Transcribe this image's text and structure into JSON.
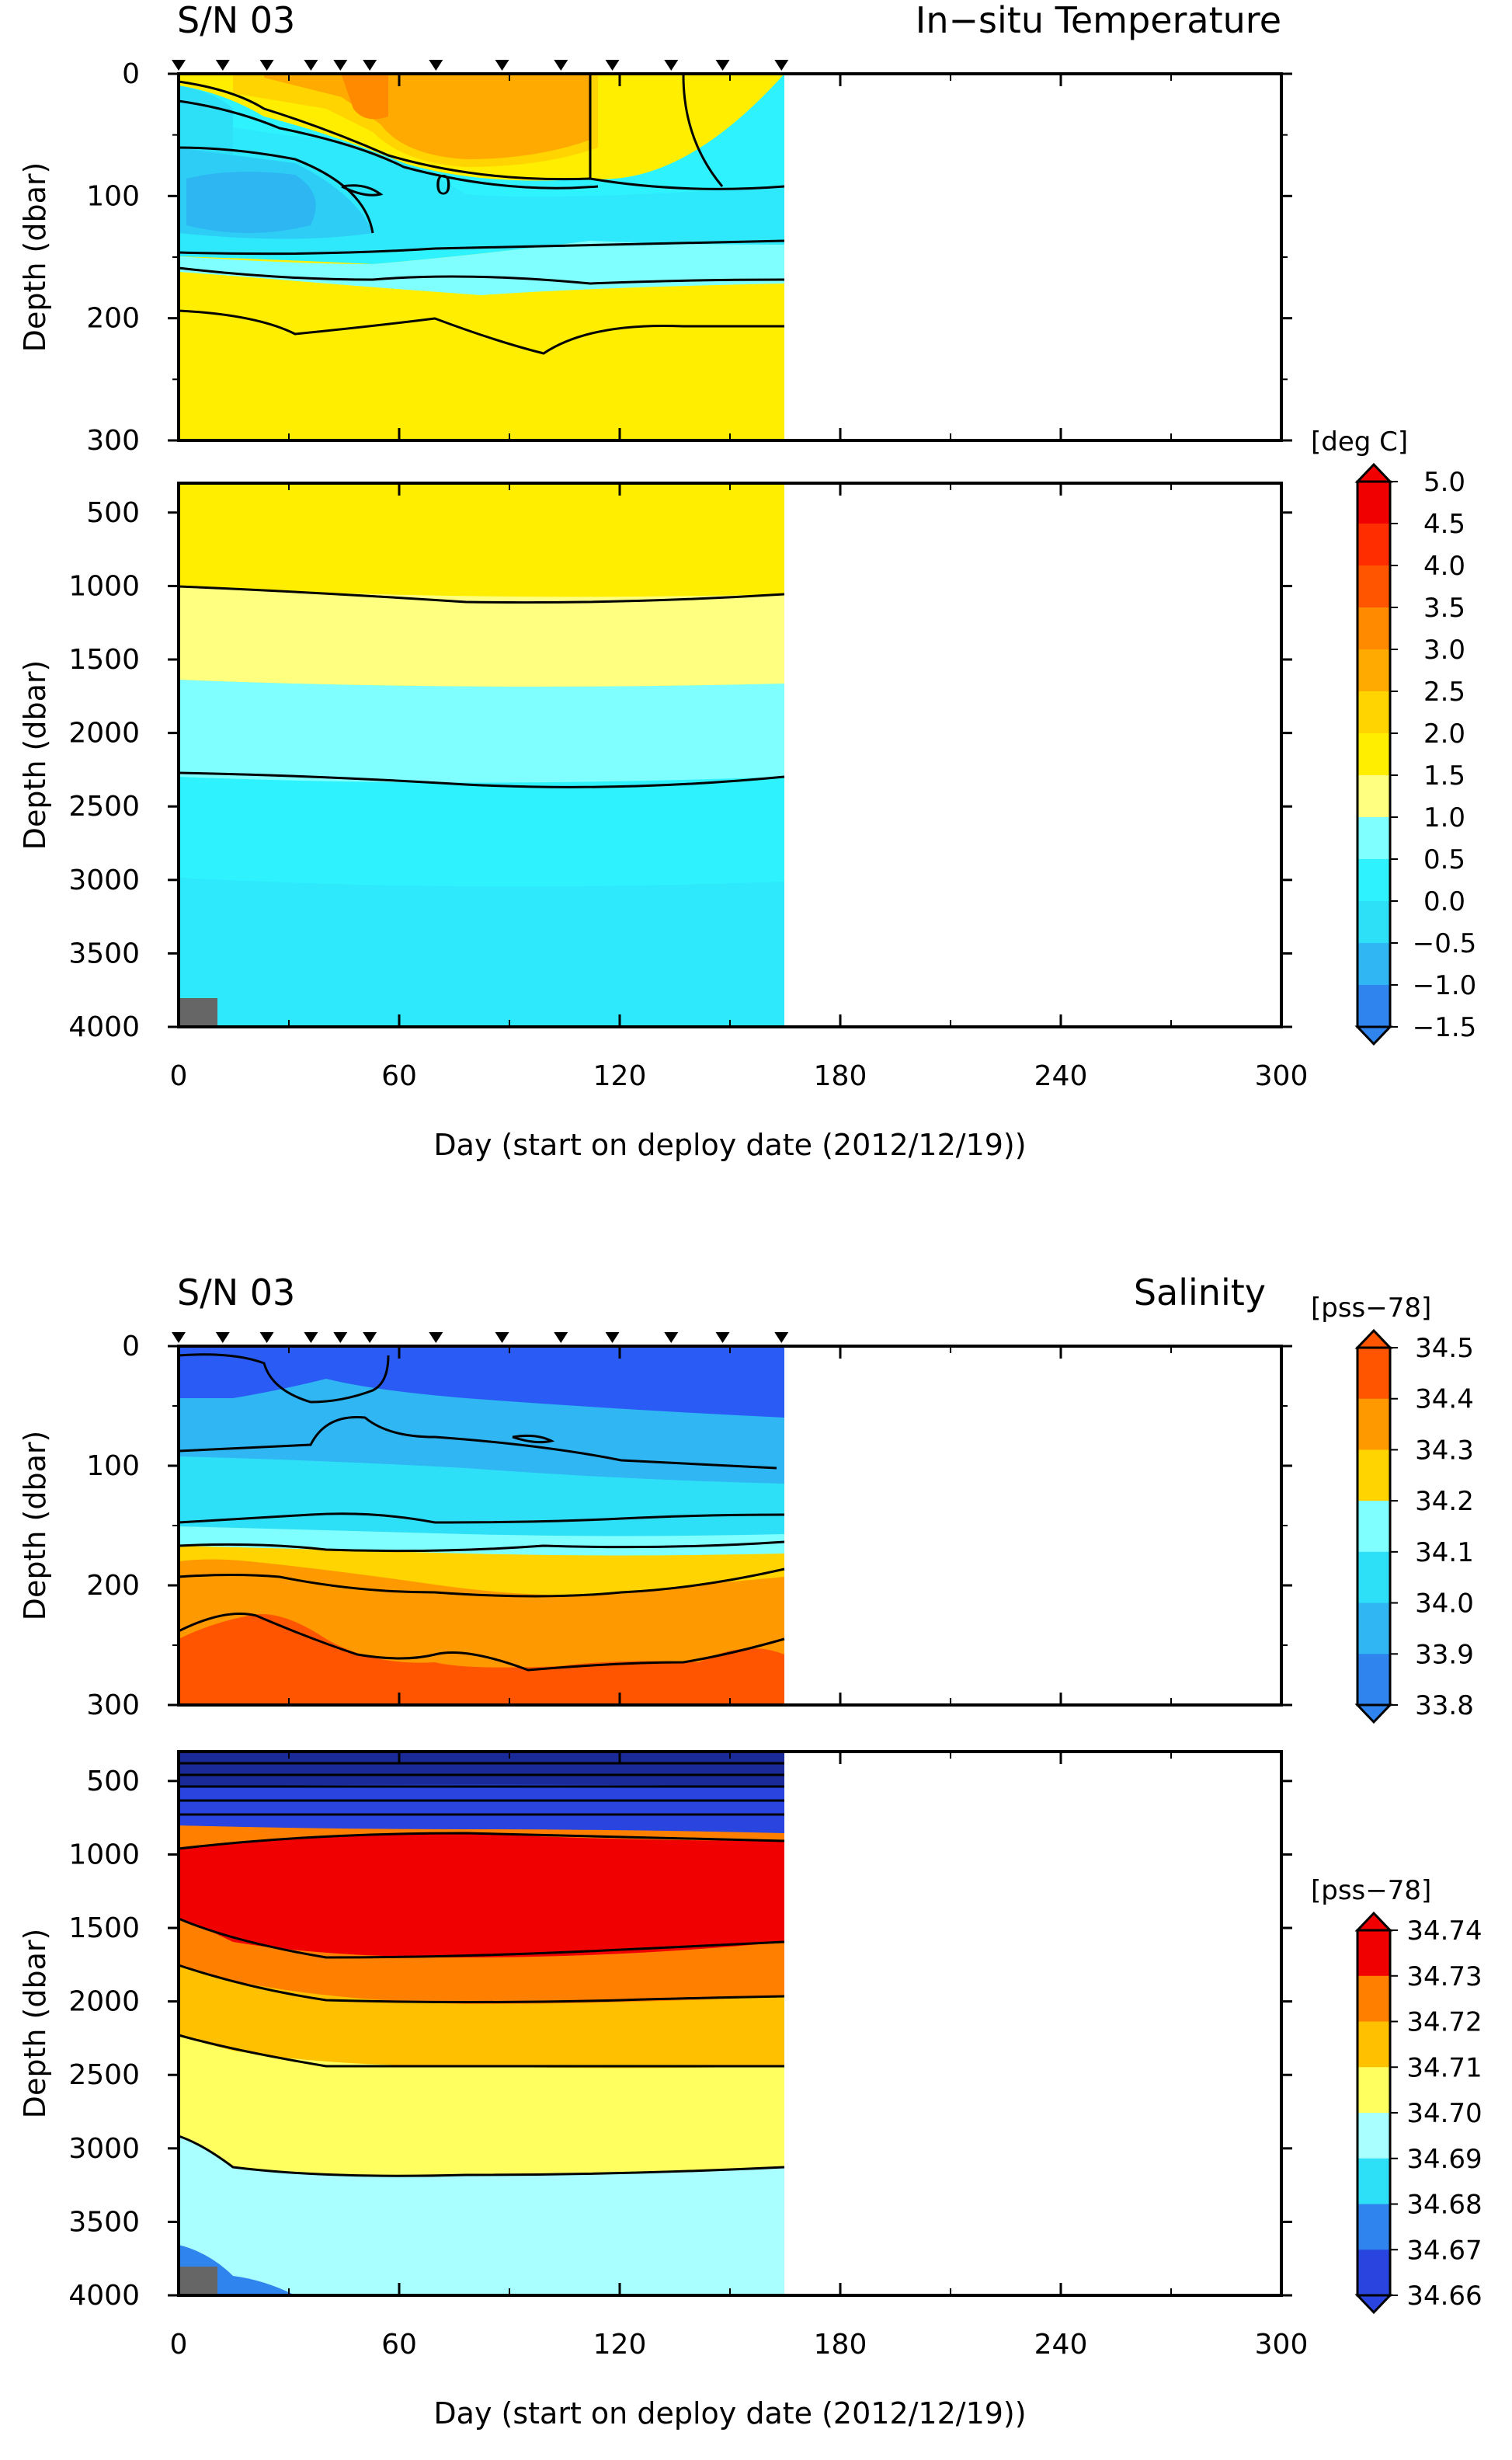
{
  "colors": {
    "t_1": "#2f52e8",
    "t_2": "#2f84ee",
    "t_3": "#2fb6f3",
    "t_4": "#2ee0f7",
    "t_5": "#2ff2ff",
    "t_6": "#7fffff",
    "t_7": "#ffff80",
    "t_8": "#ffee00",
    "t_9": "#ffd400",
    "t_10": "#ffaa00",
    "t_11": "#ff8a00",
    "t_12": "#ff5500",
    "t_13": "#ff2d00",
    "t_14": "#f00000",
    "s1_1": "#2f84ee",
    "s1_2": "#2fb6f3",
    "s1_3": "#2ee0f7",
    "s1_4": "#7fffff",
    "s1_5": "#ffd400",
    "s1_6": "#ff9900",
    "s1_7": "#ff5500",
    "s1_blue": "#2a5cf5",
    "s2_1": "#2a44e0",
    "s2_2": "#2f84ee",
    "s2_3": "#2ee0f7",
    "s2_4": "#a9ffff",
    "s2_5": "#ffff60",
    "s2_6": "#ffc000",
    "s2_7": "#ff7f00",
    "s2_8": "#f00000",
    "deep_dark": "#1a2b99",
    "gray_patch": "#666666"
  },
  "temperature": {
    "title_left": "S/N 03",
    "title_right": "In−situ Temperature",
    "ylabel": "Depth (dbar)",
    "xlabel": "Day (start on deploy date (2012/12/19))",
    "xticks": [
      "0",
      "60",
      "120",
      "180",
      "240",
      "300"
    ],
    "yticks_upper": [
      "0",
      "100",
      "200",
      "300"
    ],
    "yticks_lower": [
      "500",
      "1000",
      "1500",
      "2000",
      "2500",
      "3000",
      "3500",
      "4000"
    ],
    "contour_label": "0",
    "colorbar": {
      "unit": "[deg C]",
      "labels": [
        "5.0",
        "4.5",
        "4.0",
        "3.5",
        "3.0",
        "2.5",
        "2.0",
        "1.5",
        "1.0",
        "0.5",
        "0.0",
        "−0.5",
        "−1.0",
        "−1.5"
      ]
    }
  },
  "salinity": {
    "title_left": "S/N 03",
    "title_right": "Salinity",
    "ylabel": "Depth (dbar)",
    "xlabel": "Day (start on deploy date (2012/12/19))",
    "xticks": [
      "0",
      "60",
      "120",
      "180",
      "240",
      "300"
    ],
    "yticks_upper": [
      "0",
      "100",
      "200",
      "300"
    ],
    "yticks_lower": [
      "500",
      "1000",
      "1500",
      "2000",
      "2500",
      "3000",
      "3500",
      "4000"
    ],
    "colorbar_upper": {
      "unit": "[pss−78]",
      "labels": [
        "34.5",
        "34.4",
        "34.3",
        "34.2",
        "34.1",
        "34.0",
        "33.9",
        "33.8"
      ]
    },
    "colorbar_lower": {
      "unit": "[pss−78]",
      "labels": [
        "34.74",
        "34.73",
        "34.72",
        "34.71",
        "34.70",
        "34.69",
        "34.68",
        "34.67",
        "34.66"
      ]
    }
  },
  "chart_data": [
    {
      "type": "heatmap",
      "title": "In−situ Temperature",
      "xlabel": "Day (start on deploy date (2012/12/19))",
      "ylabel": "Depth (dbar)",
      "xlim": [
        0,
        300
      ],
      "ylim_upper": [
        0,
        300
      ],
      "ylim_lower": [
        300,
        4000
      ],
      "colorbar_range": [
        -1.5,
        5.0
      ],
      "profile_days": [
        0,
        12,
        24,
        36,
        44,
        52,
        70,
        88,
        104,
        118,
        134,
        148,
        164
      ],
      "data_end_day": 164,
      "contours_upper": [
        {
          "name": "boundary_near_surface",
          "x": [
            0,
            20,
            40,
            60,
            80,
            100,
            120,
            140,
            164
          ],
          "y": [
            70,
            72,
            78,
            85,
            90,
            92,
            95,
            100,
            100
          ]
        },
        {
          "name": "c_150",
          "x": [
            0,
            20,
            40,
            60,
            80,
            100,
            120,
            140,
            164
          ],
          "y": [
            150,
            148,
            147,
            145,
            143,
            142,
            140,
            141,
            141
          ]
        },
        {
          "name": "c_165",
          "x": [
            0,
            20,
            40,
            60,
            80,
            100,
            120,
            140,
            164
          ],
          "y": [
            165,
            168,
            170,
            175,
            178,
            175,
            170,
            168,
            168
          ]
        },
        {
          "name": "c_205",
          "x": [
            0,
            20,
            40,
            60,
            80,
            100,
            120,
            140,
            164
          ],
          "y": [
            200,
            215,
            210,
            205,
            225,
            210,
            210,
            210,
            210
          ]
        }
      ],
      "contours_lower": [
        {
          "name": "c_1000",
          "x": [
            0,
            40,
            80,
            120,
            164
          ],
          "y": [
            1000,
            1050,
            1080,
            1100,
            1050
          ]
        },
        {
          "name": "c_2300",
          "x": [
            0,
            40,
            80,
            120,
            164
          ],
          "y": [
            2300,
            2330,
            2360,
            2380,
            2300
          ]
        }
      ]
    },
    {
      "type": "heatmap",
      "title": "Salinity",
      "xlabel": "Day (start on deploy date (2012/12/19))",
      "ylabel": "Depth (dbar)",
      "xlim": [
        0,
        300
      ],
      "ylim_upper": [
        0,
        300
      ],
      "ylim_lower": [
        300,
        4000
      ],
      "colorbar_range_upper": [
        33.8,
        34.5
      ],
      "colorbar_range_lower": [
        34.66,
        34.74
      ],
      "profile_days": [
        0,
        12,
        24,
        36,
        44,
        52,
        70,
        88,
        104,
        118,
        134,
        148,
        164
      ],
      "data_end_day": 164,
      "contours_upper": [
        {
          "name": "c_85",
          "x": [
            0,
            40,
            80,
            120,
            164
          ],
          "y": [
            85,
            82,
            80,
            85,
            90
          ]
        },
        {
          "name": "c_135",
          "x": [
            0,
            40,
            80,
            120,
            164
          ],
          "y": [
            138,
            135,
            140,
            138,
            135
          ]
        },
        {
          "name": "c_170",
          "x": [
            0,
            40,
            80,
            120,
            164
          ],
          "y": [
            170,
            175,
            178,
            172,
            165
          ]
        },
        {
          "name": "c_200",
          "x": [
            0,
            40,
            80,
            120,
            164
          ],
          "y": [
            205,
            210,
            220,
            215,
            200
          ]
        },
        {
          "name": "c_240",
          "x": [
            0,
            40,
            80,
            120,
            164
          ],
          "y": [
            240,
            250,
            260,
            255,
            240
          ]
        }
      ],
      "contours_lower": [
        {
          "name": "c_700",
          "x": [
            0,
            40,
            80,
            120,
            164
          ],
          "y": [
            700,
            720,
            740,
            720,
            700
          ]
        },
        {
          "name": "c_1100",
          "x": [
            0,
            40,
            80,
            120,
            164
          ],
          "y": [
            1100,
            1080,
            1060,
            1070,
            1080
          ]
        },
        {
          "name": "c_2000",
          "x": [
            0,
            40,
            80,
            120,
            164
          ],
          "y": [
            1900,
            2050,
            2070,
            2060,
            1950
          ]
        },
        {
          "name": "c_2400",
          "x": [
            0,
            40,
            80,
            120,
            164
          ],
          "y": [
            2350,
            2450,
            2480,
            2470,
            2400
          ]
        },
        {
          "name": "c_3000",
          "x": [
            0,
            40,
            80,
            120,
            164
          ],
          "y": [
            2950,
            3050,
            3080,
            3070,
            3000
          ]
        }
      ]
    }
  ]
}
